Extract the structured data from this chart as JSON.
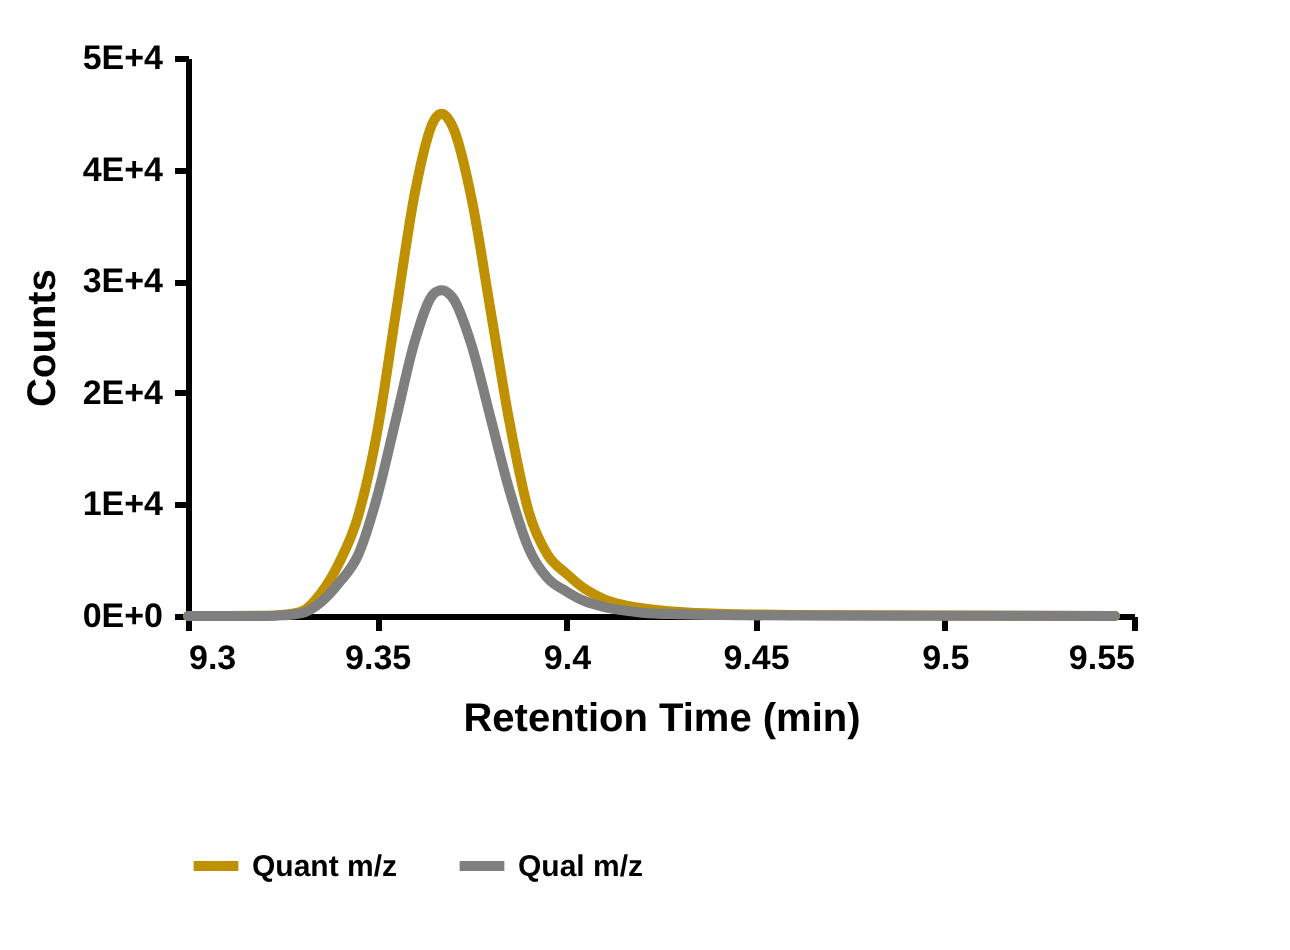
{
  "chart_data": {
    "type": "line",
    "xlabel": "Retention Time (min)",
    "ylabel": "Counts",
    "x": [
      9.3,
      9.32,
      9.325,
      9.33,
      9.335,
      9.34,
      9.345,
      9.35,
      9.355,
      9.36,
      9.365,
      9.367,
      9.37,
      9.375,
      9.38,
      9.385,
      9.39,
      9.395,
      9.4,
      9.405,
      9.41,
      9.415,
      9.42,
      9.43,
      9.44,
      9.46,
      9.5,
      9.545
    ],
    "series": [
      {
        "name": "Quant m/z",
        "color": "#bf9000",
        "values": [
          0,
          20,
          100,
          400,
          2000,
          4800,
          9000,
          16500,
          27300,
          38000,
          44400,
          45000,
          43800,
          37300,
          27300,
          17300,
          9400,
          5500,
          3800,
          2400,
          1500,
          1000,
          700,
          350,
          200,
          100,
          50,
          0
        ]
      },
      {
        "name": "Qual m/z",
        "color": "#7f7f7f",
        "values": [
          0,
          0,
          60,
          250,
          1200,
          3000,
          5500,
          10700,
          17700,
          24700,
          28900,
          29200,
          28500,
          24200,
          17700,
          11200,
          6100,
          3400,
          2200,
          1300,
          800,
          500,
          300,
          150,
          80,
          40,
          20,
          0
        ]
      }
    ],
    "xlim": [
      9.3,
      9.55
    ],
    "xticks": [
      9.3,
      9.35,
      9.4,
      9.45,
      9.5,
      9.55
    ],
    "ylim": [
      0,
      50000
    ],
    "yticks": [
      {
        "value": 0,
        "label": "0E+0"
      },
      {
        "value": 10000,
        "label": "1E+4"
      },
      {
        "value": 20000,
        "label": "2E+4"
      },
      {
        "value": 30000,
        "label": "3E+4"
      },
      {
        "value": 40000,
        "label": "4E+4"
      },
      {
        "value": 50000,
        "label": "5E+4"
      }
    ],
    "grid": false,
    "legend": "bottom",
    "marker": "none",
    "line_style": "solid"
  }
}
